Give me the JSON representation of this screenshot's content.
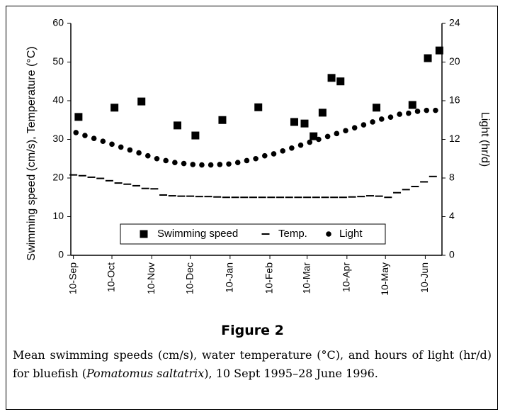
{
  "chart_data": {
    "type": "scatter",
    "figure_label": "Figure 2",
    "caption": [
      "Mean swimming speeds (cm/s), water temperature (°C), and hours of light (hr/d) for bluefish (",
      "Pomatomus saltatrix",
      "), 10 Sept 1995–28 June 1996."
    ],
    "y_label": "Swimming speed (cm/s), Temperature (°C)",
    "y2_label": "Light (hr/d)",
    "xlim": [
      -2,
      287
    ],
    "xticks": [
      {
        "value": 0,
        "label": "10-Sep"
      },
      {
        "value": 30,
        "label": "10-Oct"
      },
      {
        "value": 61,
        "label": "10-Nov"
      },
      {
        "value": 91,
        "label": "10-Dec"
      },
      {
        "value": 122,
        "label": "10-Jan"
      },
      {
        "value": 153,
        "label": "10-Feb"
      },
      {
        "value": 182,
        "label": "10-Mar"
      },
      {
        "value": 213,
        "label": "10-Apr"
      },
      {
        "value": 243,
        "label": "10-May"
      },
      {
        "value": 274,
        "label": "10-Jun"
      }
    ],
    "ylim": [
      0,
      60
    ],
    "yticks": [
      0,
      10,
      20,
      30,
      40,
      50,
      60
    ],
    "y2lim": [
      0,
      24
    ],
    "y2ticks": [
      0,
      4,
      8,
      12,
      16,
      20,
      24
    ],
    "grid": false,
    "legend": "bottom",
    "series": [
      {
        "name": "Swimming speed",
        "color": "#000000",
        "marker": "square",
        "x": [
          4,
          32,
          53,
          81,
          95,
          116,
          144,
          172,
          180,
          187,
          194,
          201,
          208,
          236,
          264,
          276,
          285
        ],
        "values": [
          35.8,
          38.2,
          39.8,
          33.6,
          31.0,
          35.0,
          38.3,
          34.5,
          34.1,
          30.8,
          36.9,
          45.9,
          45.0,
          38.2,
          38.9,
          51.0,
          53.0
        ]
      },
      {
        "name": "Temp.",
        "color": "#000000",
        "marker": "dash",
        "x": [
          0,
          7,
          14,
          21,
          28,
          35,
          42,
          49,
          56,
          63,
          70,
          77,
          84,
          91,
          98,
          105,
          112,
          119,
          126,
          133,
          140,
          147,
          154,
          161,
          168,
          175,
          182,
          189,
          196,
          203,
          210,
          217,
          224,
          231,
          238,
          245,
          252,
          259,
          266,
          273,
          280
        ],
        "values": [
          20.8,
          20.6,
          20.2,
          19.9,
          19.3,
          18.7,
          18.4,
          18.0,
          17.3,
          17.2,
          15.6,
          15.4,
          15.3,
          15.3,
          15.2,
          15.2,
          15.1,
          15.0,
          15.0,
          15.0,
          15.0,
          15.0,
          15.0,
          15.0,
          15.0,
          15.0,
          15.0,
          15.0,
          15.0,
          15.0,
          15.0,
          15.1,
          15.2,
          15.4,
          15.3,
          15.0,
          16.2,
          17.0,
          17.8,
          19.0,
          20.4
        ]
      },
      {
        "name": "Light",
        "color": "#000000",
        "marker": "circle",
        "axis": "y2",
        "x": [
          2,
          9,
          16,
          23,
          30,
          37,
          44,
          51,
          58,
          65,
          72,
          79,
          86,
          93,
          100,
          107,
          114,
          121,
          128,
          135,
          142,
          149,
          156,
          163,
          170,
          177,
          184,
          191,
          198,
          205,
          212,
          219,
          226,
          233,
          240,
          247,
          254,
          261,
          268,
          275,
          282
        ],
        "values": [
          12.7,
          12.4,
          12.1,
          11.8,
          11.5,
          11.2,
          10.9,
          10.6,
          10.3,
          10.0,
          9.8,
          9.6,
          9.5,
          9.4,
          9.35,
          9.35,
          9.4,
          9.45,
          9.6,
          9.8,
          10.0,
          10.3,
          10.5,
          10.8,
          11.1,
          11.4,
          11.7,
          12.0,
          12.3,
          12.6,
          12.9,
          13.2,
          13.5,
          13.8,
          14.1,
          14.3,
          14.6,
          14.7,
          14.9,
          15.0,
          15.0
        ]
      }
    ]
  }
}
